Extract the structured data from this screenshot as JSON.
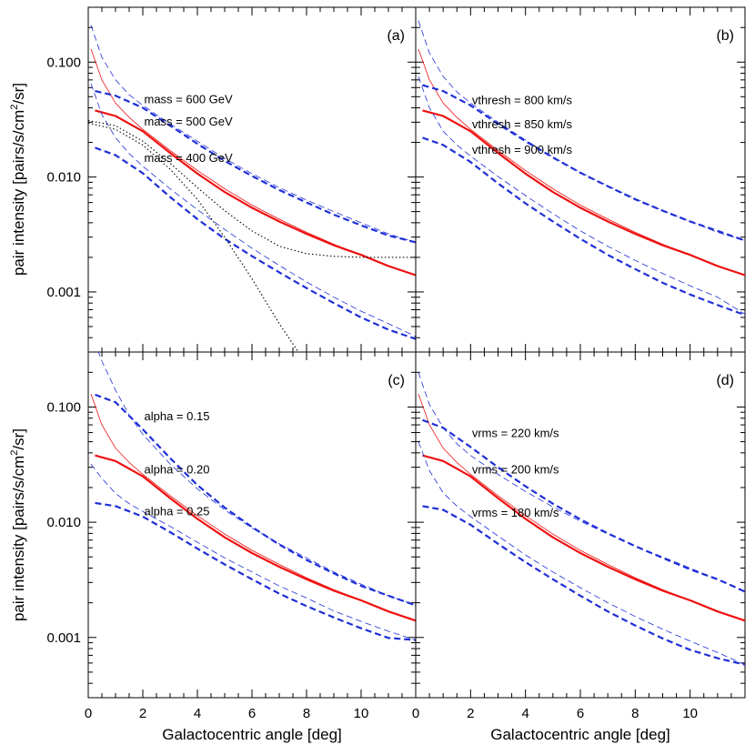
{
  "figure": {
    "xlabel": "Galactocentric angle [deg]",
    "ylabel_main": "pair intensity [pairs/s/cm",
    "ylabel_sup": "2",
    "ylabel_tail": "/sr]"
  },
  "chart_data": [
    {
      "type": "line",
      "panel_label": "(a)",
      "xlim": [
        0,
        12
      ],
      "ylim": [
        0.0003,
        0.3
      ],
      "yscale": "log",
      "x_ticks": [
        0,
        2,
        4,
        6,
        8,
        10
      ],
      "x_tick_labels": [
        "0",
        "2",
        "4",
        "6",
        "8",
        "10"
      ],
      "y_ticks": [
        0.001,
        0.01,
        0.1
      ],
      "y_tick_labels": [
        "0.001",
        "0.010",
        "0.100"
      ],
      "annotations": [
        {
          "text": "mass = 600 GeV",
          "x": 2.05,
          "y": 0.044
        },
        {
          "text": "mass = 500 GeV",
          "x": 2.05,
          "y": 0.028
        },
        {
          "text": "mass = 400 GeV",
          "x": 2.05,
          "y": 0.0135
        }
      ],
      "series": [
        {
          "style": "red-thick",
          "x": [
            0.25,
            1,
            2,
            3,
            4,
            5,
            6,
            7,
            8,
            9,
            10,
            11,
            12
          ],
          "y": [
            0.038,
            0.034,
            0.025,
            0.0162,
            0.0107,
            0.0074,
            0.0054,
            0.0041,
            0.0032,
            0.00255,
            0.0021,
            0.00168,
            0.0014
          ]
        },
        {
          "style": "red-thin",
          "x": [
            0.1,
            0.5,
            1,
            1.5,
            2,
            3,
            4,
            5,
            6,
            7,
            8,
            9,
            10,
            11,
            12
          ],
          "y": [
            0.13,
            0.07,
            0.044,
            0.033,
            0.026,
            0.017,
            0.0114,
            0.0079,
            0.0057,
            0.0043,
            0.0033,
            0.0026,
            0.0021,
            0.0017,
            0.0014
          ]
        },
        {
          "style": "blue-thick",
          "x": [
            0.25,
            1,
            2,
            3,
            4,
            5,
            6,
            7,
            8,
            9,
            10,
            11,
            12
          ],
          "y": [
            0.056,
            0.051,
            0.04,
            0.028,
            0.0195,
            0.0138,
            0.0102,
            0.0077,
            0.006,
            0.0047,
            0.0038,
            0.0031,
            0.0027
          ]
        },
        {
          "style": "blue-thin",
          "x": [
            0.1,
            0.5,
            1,
            1.5,
            2,
            3,
            4,
            5,
            6,
            7,
            8,
            9,
            10,
            11,
            12
          ],
          "y": [
            0.21,
            0.11,
            0.07,
            0.052,
            0.042,
            0.029,
            0.0205,
            0.0145,
            0.0107,
            0.0081,
            0.0063,
            0.005,
            0.004,
            0.0032,
            0.0027
          ]
        },
        {
          "style": "blue-thick",
          "x": [
            0.25,
            1,
            2,
            3,
            4,
            5,
            6,
            7,
            8,
            9,
            10,
            11,
            12
          ],
          "y": [
            0.018,
            0.0155,
            0.0108,
            0.0067,
            0.0043,
            0.0029,
            0.00205,
            0.00148,
            0.00108,
            0.0008,
            0.0006,
            0.00047,
            0.00039
          ]
        },
        {
          "style": "blue-thin",
          "x": [
            0.1,
            0.5,
            1,
            1.5,
            2,
            3,
            4,
            5,
            6,
            7,
            8,
            9,
            10,
            11,
            12
          ],
          "y": [
            0.065,
            0.035,
            0.022,
            0.016,
            0.0124,
            0.0079,
            0.0052,
            0.0035,
            0.0024,
            0.0017,
            0.00122,
            0.0009,
            0.00068,
            0.00053,
            0.00041
          ]
        },
        {
          "style": "black-dotted",
          "x": [
            0,
            1,
            2,
            3,
            4,
            5,
            6,
            7,
            8,
            9,
            10,
            11,
            12
          ],
          "y": [
            0.031,
            0.028,
            0.0205,
            0.0132,
            0.0081,
            0.0051,
            0.0034,
            0.0025,
            0.00215,
            0.00204,
            0.002,
            0.002,
            0.002
          ]
        },
        {
          "style": "black-dotted",
          "x": [
            0,
            1,
            2,
            3,
            4,
            5,
            6,
            7,
            7.7
          ],
          "y": [
            0.0295,
            0.026,
            0.019,
            0.0117,
            0.0064,
            0.003,
            0.0013,
            0.00053,
            0.0003
          ]
        }
      ]
    },
    {
      "type": "line",
      "panel_label": "(b)",
      "xlim": [
        0,
        12
      ],
      "ylim": [
        0.0003,
        0.3
      ],
      "yscale": "log",
      "x_ticks": [
        0,
        2,
        4,
        6,
        8,
        10
      ],
      "x_tick_labels": [
        "0",
        "2",
        "4",
        "6",
        "8",
        "10"
      ],
      "y_ticks": [
        0.001,
        0.01,
        0.1
      ],
      "y_tick_labels": [
        "",
        "",
        ""
      ],
      "annotations": [
        {
          "text": "vthresh =  800 km/s",
          "x": 2.05,
          "y": 0.043
        },
        {
          "text": "vthresh =  850 km/s",
          "x": 2.05,
          "y": 0.0265
        },
        {
          "text": "vthresh =  900 km/s",
          "x": 2.05,
          "y": 0.016
        }
      ],
      "series": [
        {
          "style": "red-thick",
          "x": [
            0.25,
            1,
            2,
            3,
            4,
            5,
            6,
            7,
            8,
            9,
            10,
            11,
            12
          ],
          "y": [
            0.038,
            0.034,
            0.025,
            0.0162,
            0.0107,
            0.0074,
            0.0054,
            0.0041,
            0.0032,
            0.00255,
            0.0021,
            0.00168,
            0.0014
          ]
        },
        {
          "style": "red-thin",
          "x": [
            0.1,
            0.5,
            1,
            1.5,
            2,
            3,
            4,
            5,
            6,
            7,
            8,
            9,
            10,
            11,
            12
          ],
          "y": [
            0.13,
            0.07,
            0.044,
            0.033,
            0.026,
            0.017,
            0.0114,
            0.0079,
            0.0057,
            0.0043,
            0.0033,
            0.0026,
            0.0021,
            0.0017,
            0.0014
          ]
        },
        {
          "style": "blue-thick",
          "x": [
            0.25,
            1,
            2,
            3,
            4,
            5,
            6,
            7,
            8,
            9,
            10,
            11,
            12
          ],
          "y": [
            0.063,
            0.056,
            0.042,
            0.029,
            0.0205,
            0.0148,
            0.0109,
            0.0083,
            0.0064,
            0.0051,
            0.0041,
            0.0034,
            0.0028
          ]
        },
        {
          "style": "blue-thin",
          "x": [
            0.1,
            0.5,
            1,
            1.5,
            2,
            3,
            4,
            5,
            6,
            7,
            8,
            9,
            10,
            11,
            12
          ],
          "y": [
            0.23,
            0.12,
            0.075,
            0.055,
            0.044,
            0.03,
            0.021,
            0.015,
            0.011,
            0.0084,
            0.0065,
            0.0051,
            0.0041,
            0.0033,
            0.0028
          ]
        },
        {
          "style": "blue-thick",
          "x": [
            0.25,
            1,
            2,
            3,
            4,
            5,
            6,
            7,
            8,
            9,
            10,
            11,
            12
          ],
          "y": [
            0.022,
            0.019,
            0.0135,
            0.0088,
            0.0059,
            0.0041,
            0.0029,
            0.0021,
            0.00158,
            0.0012,
            0.00095,
            0.00077,
            0.00063
          ]
        },
        {
          "style": "blue-thin",
          "x": [
            0.1,
            0.5,
            1,
            1.5,
            2,
            3,
            4,
            5,
            6,
            7,
            8,
            9,
            10,
            11,
            12
          ],
          "y": [
            0.075,
            0.04,
            0.025,
            0.019,
            0.0152,
            0.0101,
            0.0069,
            0.0048,
            0.0034,
            0.0025,
            0.00188,
            0.00145,
            0.00113,
            0.0009,
            0.00064
          ]
        }
      ]
    },
    {
      "type": "line",
      "panel_label": "(c)",
      "xlim": [
        0,
        12
      ],
      "ylim": [
        0.0003,
        0.3
      ],
      "yscale": "log",
      "x_ticks": [
        0,
        2,
        4,
        6,
        8,
        10
      ],
      "x_tick_labels": [
        "0",
        "2",
        "4",
        "6",
        "8",
        "10"
      ],
      "y_ticks": [
        0.001,
        0.01,
        0.1
      ],
      "y_tick_labels": [
        "0.001",
        "0.010",
        "0.100"
      ],
      "annotations": [
        {
          "text": "alpha = 0.15",
          "x": 2.05,
          "y": 0.077
        },
        {
          "text": "alpha = 0.20",
          "x": 2.05,
          "y": 0.0265
        },
        {
          "text": "alpha = 0.25",
          "x": 2.05,
          "y": 0.0115
        }
      ],
      "series": [
        {
          "style": "red-thick",
          "x": [
            0.25,
            1,
            2,
            3,
            4,
            5,
            6,
            7,
            8,
            9,
            10,
            11,
            12
          ],
          "y": [
            0.038,
            0.034,
            0.025,
            0.0162,
            0.0107,
            0.0074,
            0.0054,
            0.0041,
            0.0032,
            0.00255,
            0.0021,
            0.00168,
            0.0014
          ]
        },
        {
          "style": "red-thin",
          "x": [
            0.1,
            0.5,
            1,
            1.5,
            2,
            3,
            4,
            5,
            6,
            7,
            8,
            9,
            10,
            11,
            12
          ],
          "y": [
            0.13,
            0.07,
            0.044,
            0.033,
            0.026,
            0.017,
            0.0114,
            0.0079,
            0.0057,
            0.0043,
            0.0033,
            0.0026,
            0.0021,
            0.0017,
            0.0014
          ]
        },
        {
          "style": "blue-thick",
          "x": [
            0.25,
            1,
            2,
            3,
            4,
            5,
            6,
            7,
            8,
            9,
            10,
            11,
            12
          ],
          "y": [
            0.128,
            0.11,
            0.064,
            0.036,
            0.021,
            0.0134,
            0.0091,
            0.0064,
            0.0047,
            0.0036,
            0.0028,
            0.0023,
            0.0019
          ]
        },
        {
          "style": "blue-thin",
          "x": [
            0.1,
            0.5,
            1,
            1.5,
            2,
            3,
            4,
            5,
            6,
            7,
            8,
            9,
            10,
            11,
            12
          ],
          "y": [
            0.45,
            0.25,
            0.14,
            0.085,
            0.058,
            0.032,
            0.0195,
            0.0128,
            0.0089,
            0.0065,
            0.0049,
            0.0037,
            0.0029,
            0.0023,
            0.0019
          ]
        },
        {
          "style": "blue-thick",
          "x": [
            0.25,
            1,
            2,
            3,
            4,
            5,
            6,
            7,
            8,
            9,
            10,
            11,
            12
          ],
          "y": [
            0.0147,
            0.0138,
            0.0112,
            0.0082,
            0.0059,
            0.0043,
            0.0032,
            0.0024,
            0.00187,
            0.00149,
            0.0012,
            0.00099,
            0.00095
          ]
        },
        {
          "style": "blue-thin",
          "x": [
            0.1,
            0.5,
            1,
            1.5,
            2,
            3,
            4,
            5,
            6,
            7,
            8,
            9,
            10,
            11,
            12
          ],
          "y": [
            0.032,
            0.024,
            0.0178,
            0.0145,
            0.0124,
            0.0092,
            0.0067,
            0.0049,
            0.0037,
            0.0028,
            0.0022,
            0.0017,
            0.00138,
            0.00113,
            0.00095
          ]
        }
      ]
    },
    {
      "type": "line",
      "panel_label": "(d)",
      "xlim": [
        0,
        12
      ],
      "ylim": [
        0.0003,
        0.3
      ],
      "yscale": "log",
      "x_ticks": [
        0,
        2,
        4,
        6,
        8,
        10
      ],
      "x_tick_labels": [
        "0",
        "2",
        "4",
        "6",
        "8",
        "10"
      ],
      "y_ticks": [
        0.001,
        0.01,
        0.1
      ],
      "y_tick_labels": [
        "",
        "",
        ""
      ],
      "annotations": [
        {
          "text": "vrms = 220 km/s",
          "x": 2.05,
          "y": 0.055
        },
        {
          "text": "vrms = 200 km/s",
          "x": 2.05,
          "y": 0.0265
        },
        {
          "text": "vrms = 180 km/s",
          "x": 2.05,
          "y": 0.0112
        }
      ],
      "series": [
        {
          "style": "red-thick",
          "x": [
            0.25,
            1,
            2,
            3,
            4,
            5,
            6,
            7,
            8,
            9,
            10,
            11,
            12
          ],
          "y": [
            0.038,
            0.034,
            0.025,
            0.0162,
            0.0107,
            0.0074,
            0.0054,
            0.0041,
            0.0032,
            0.00255,
            0.0021,
            0.00168,
            0.0014
          ]
        },
        {
          "style": "red-thin",
          "x": [
            0.1,
            0.5,
            1,
            1.5,
            2,
            3,
            4,
            5,
            6,
            7,
            8,
            9,
            10,
            11,
            12
          ],
          "y": [
            0.13,
            0.07,
            0.044,
            0.033,
            0.026,
            0.017,
            0.0114,
            0.0079,
            0.0057,
            0.0043,
            0.0033,
            0.0026,
            0.0021,
            0.0017,
            0.0014
          ]
        },
        {
          "style": "blue-thick",
          "x": [
            0.25,
            1,
            2,
            3,
            4,
            5,
            6,
            7,
            8,
            9,
            10,
            11,
            12
          ],
          "y": [
            0.077,
            0.066,
            0.045,
            0.03,
            0.0205,
            0.0145,
            0.0106,
            0.008,
            0.0062,
            0.0049,
            0.0039,
            0.0032,
            0.0025
          ]
        },
        {
          "style": "blue-thin",
          "x": [
            0.1,
            0.5,
            1,
            1.5,
            2,
            3,
            4,
            5,
            6,
            7,
            8,
            9,
            10,
            11,
            12
          ],
          "y": [
            0.2,
            0.105,
            0.066,
            0.048,
            0.038,
            0.026,
            0.0185,
            0.0136,
            0.0102,
            0.0079,
            0.0062,
            0.005,
            0.004,
            0.0032,
            0.0025
          ]
        },
        {
          "style": "blue-thick",
          "x": [
            0.25,
            1,
            2,
            3,
            4,
            5,
            6,
            7,
            8,
            9,
            10,
            11,
            12
          ],
          "y": [
            0.0138,
            0.0128,
            0.0095,
            0.0065,
            0.0045,
            0.0032,
            0.0023,
            0.00168,
            0.00127,
            0.00098,
            0.00078,
            0.00066,
            0.00058
          ]
        },
        {
          "style": "blue-thin",
          "x": [
            0.1,
            0.5,
            1,
            1.5,
            2,
            3,
            4,
            5,
            6,
            7,
            8,
            9,
            10,
            11,
            12
          ],
          "y": [
            0.05,
            0.028,
            0.018,
            0.0138,
            0.0112,
            0.0076,
            0.0052,
            0.0037,
            0.0027,
            0.002,
            0.00152,
            0.00118,
            0.00093,
            0.00074,
            0.00058
          ]
        }
      ]
    }
  ]
}
